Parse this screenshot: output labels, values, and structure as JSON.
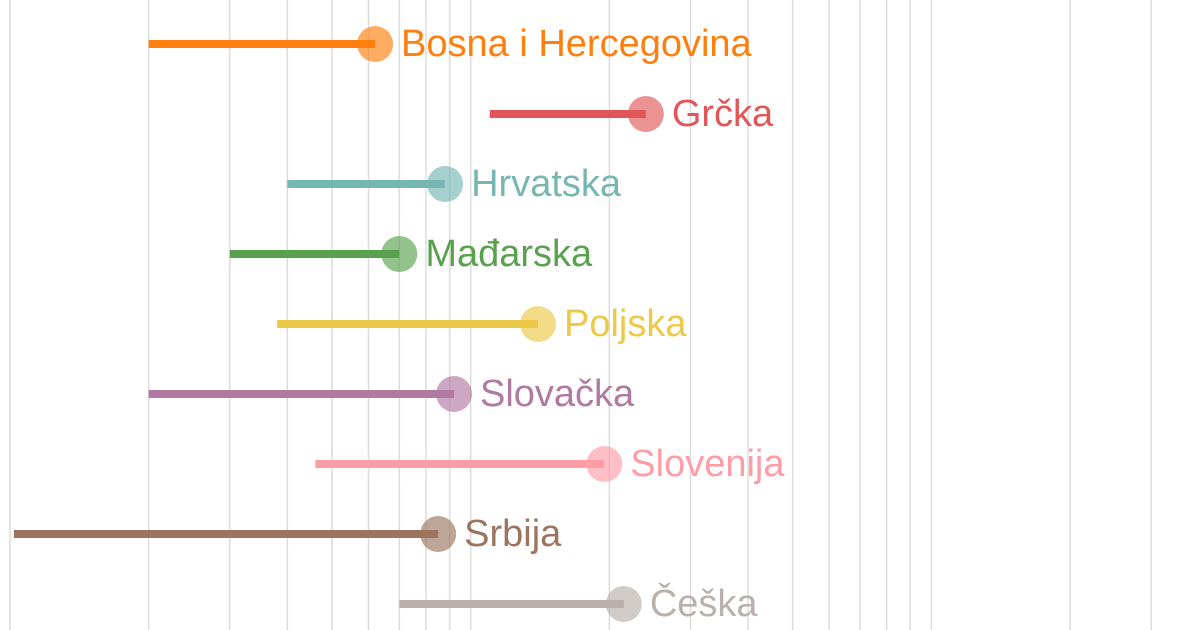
{
  "chart_data": {
    "type": "dumbbell",
    "x_scale": "log",
    "xlim": [
      10,
      3500
    ],
    "grid": true,
    "legend": "none",
    "series": [
      {
        "name": "Bosna i Hercegovina",
        "start": 20,
        "end": 62,
        "color": "#ff7f0e"
      },
      {
        "name": "Grčka",
        "start": 110,
        "end": 240,
        "color": "#e15759"
      },
      {
        "name": "Hrvatska",
        "start": 40,
        "end": 88,
        "color": "#76b7b2"
      },
      {
        "name": "Mađarska",
        "start": 30,
        "end": 70,
        "color": "#59a14f"
      },
      {
        "name": "Poljska",
        "start": 38,
        "end": 140,
        "color": "#edc948"
      },
      {
        "name": "Slovačka",
        "start": 20,
        "end": 92,
        "color": "#b07aa1"
      },
      {
        "name": "Slovenija",
        "start": 46,
        "end": 195,
        "color": "#ff9da7"
      },
      {
        "name": "Srbija",
        "start": 10.2,
        "end": 85,
        "color": "#9c755f"
      },
      {
        "name": "Češka",
        "start": 70,
        "end": 215,
        "color": "#bab0ac"
      }
    ]
  }
}
